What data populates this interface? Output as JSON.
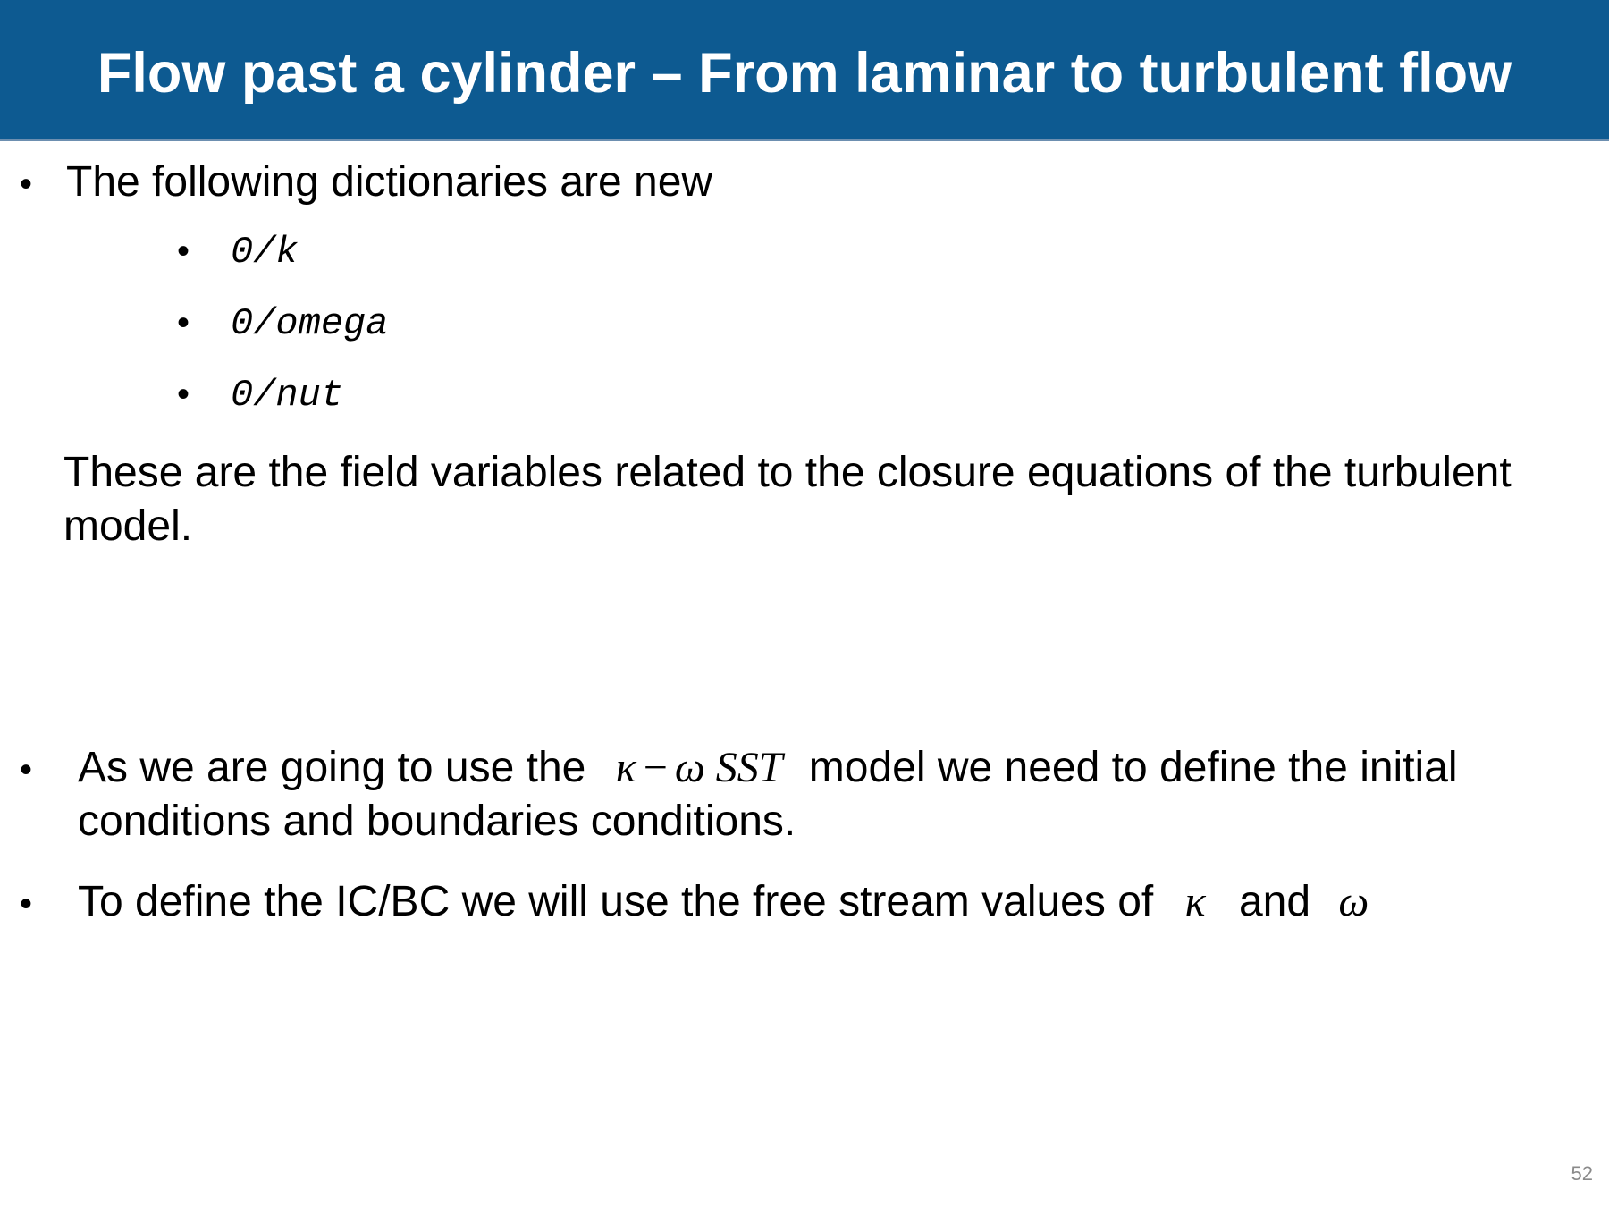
{
  "slide": {
    "title": "Flow past a cylinder – From laminar to turbulent flow",
    "page_number": "52",
    "accent_color": "#0d5a91"
  },
  "section1": {
    "bullet_glyph": "•",
    "heading": "The following dictionaries are new",
    "items": [
      "0/k",
      "0/omega",
      "0/nut"
    ],
    "note_line1": "These are the field variables related to the closure equations of the turbulent",
    "note_line2": "model."
  },
  "section2": {
    "bullet1": {
      "text_before": "As we are going to use the",
      "math_kappa": "κ",
      "math_minus": "−",
      "math_omega": "ω",
      "math_sst": "SST",
      "text_after": "model we need to define the initial",
      "line2": "conditions and boundaries conditions."
    },
    "bullet2": {
      "text_before": "To define the IC/BC we will use  the free stream values of",
      "math_kappa": "κ",
      "text_and": "and",
      "math_omega": "ω"
    }
  }
}
